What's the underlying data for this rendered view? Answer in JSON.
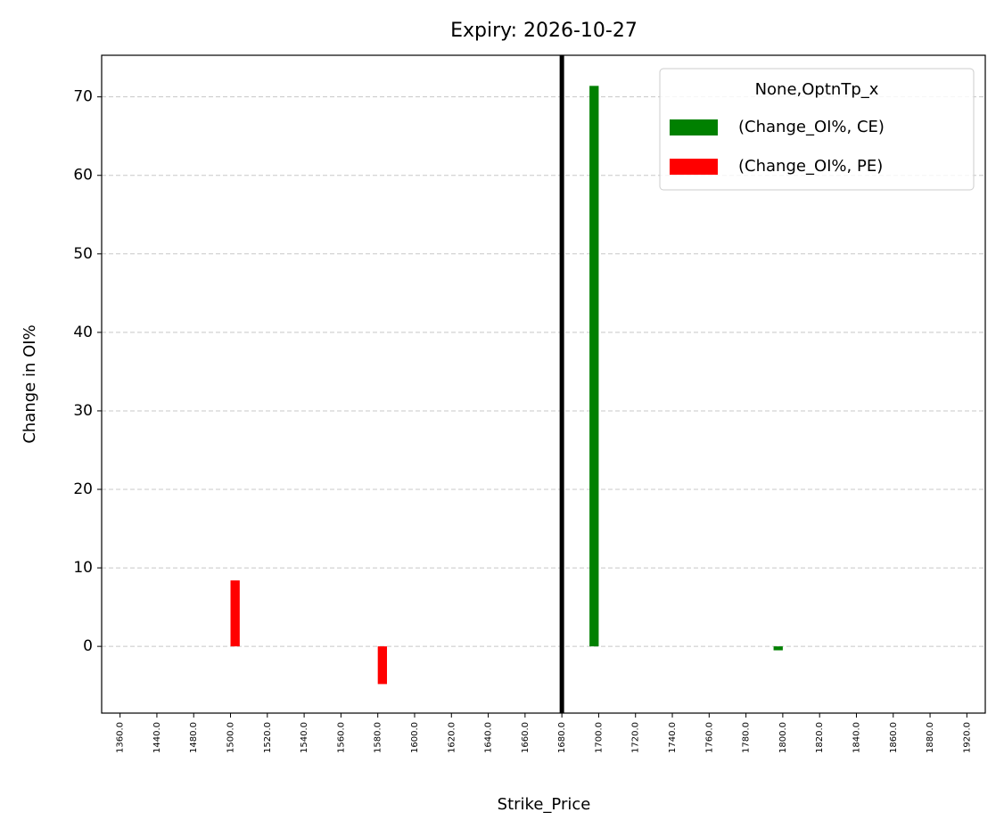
{
  "chart_data": {
    "type": "bar",
    "title": "Expiry: 2026-10-27",
    "x_label": "Strike_Price",
    "y_label": "Change in OI%",
    "categories": [
      "1360.0",
      "1440.0",
      "1480.0",
      "1500.0",
      "1520.0",
      "1540.0",
      "1560.0",
      "1580.0",
      "1600.0",
      "1620.0",
      "1640.0",
      "1660.0",
      "1680.0",
      "1700.0",
      "1720.0",
      "1740.0",
      "1760.0",
      "1780.0",
      "1800.0",
      "1820.0",
      "1840.0",
      "1860.0",
      "1880.0",
      "1920.0"
    ],
    "series": [
      {
        "name": "(Change_OI%, CE)",
        "color": "#008000",
        "values": [
          null,
          null,
          null,
          null,
          null,
          null,
          null,
          null,
          null,
          null,
          null,
          null,
          null,
          71.4,
          null,
          null,
          null,
          null,
          -0.5,
          null,
          null,
          null,
          null,
          null
        ]
      },
      {
        "name": "(Change_OI%, PE)",
        "color": "#ff0000",
        "values": [
          null,
          null,
          null,
          8.4,
          null,
          null,
          null,
          -4.8,
          null,
          null,
          null,
          null,
          null,
          null,
          null,
          null,
          null,
          null,
          null,
          null,
          null,
          null,
          null,
          null
        ]
      }
    ],
    "legend_title": "None,OptnTp_x",
    "legend_position": "upper right",
    "vline_category": "1680.0",
    "vline_color": "#000000",
    "ylim": [
      -8.5,
      75.3
    ],
    "yticks": [
      0,
      10,
      20,
      30,
      40,
      50,
      60,
      70
    ],
    "grid": true
  }
}
